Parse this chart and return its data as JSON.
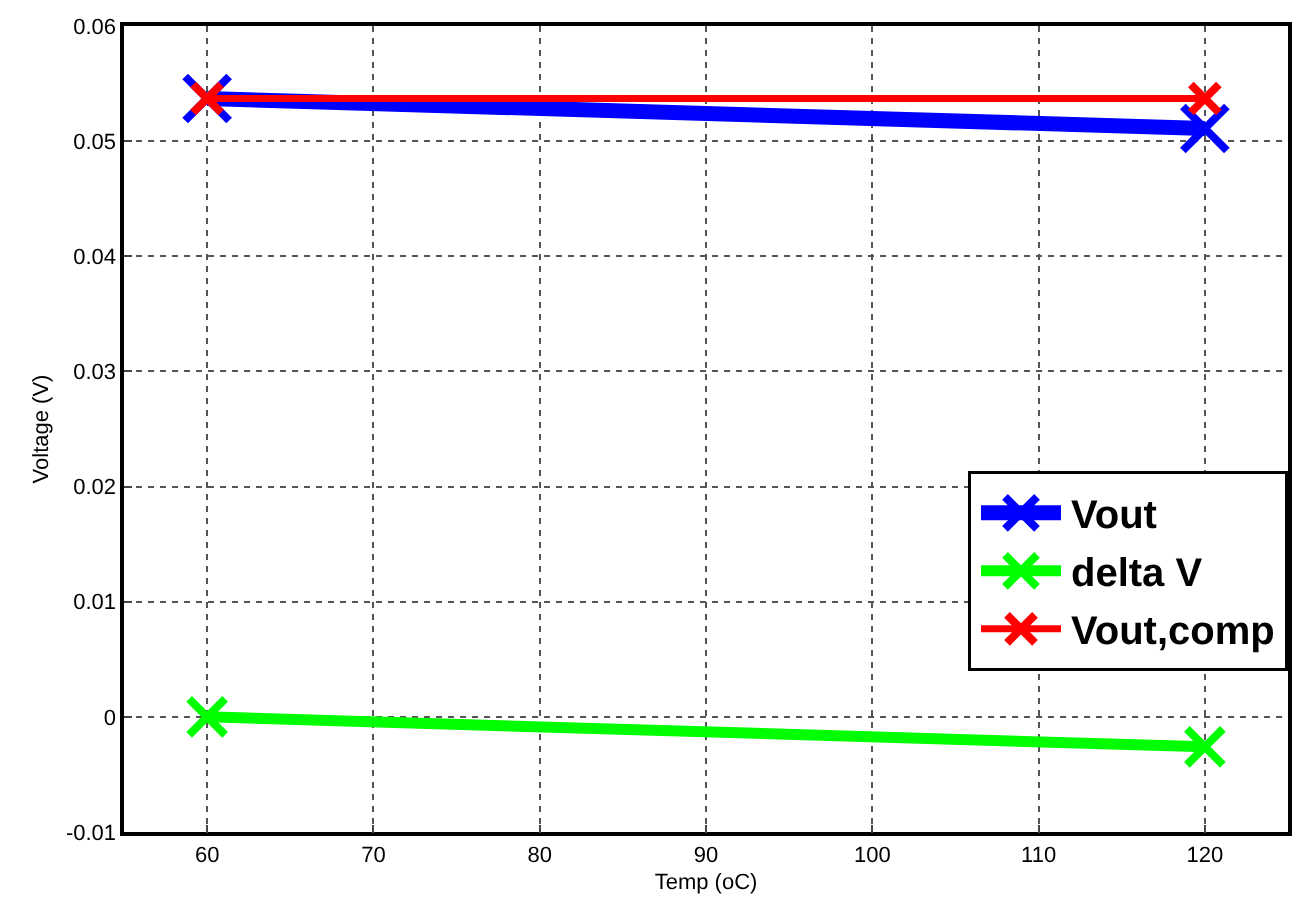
{
  "chart_data": {
    "type": "line",
    "xlabel": "Temp (oC)",
    "ylabel": "Voltage (V)",
    "x": [
      60,
      120
    ],
    "series": [
      {
        "name": "Vout",
        "color": "#0000ff",
        "values": [
          0.0537,
          0.0511
        ]
      },
      {
        "name": "delta V",
        "color": "#00ff00",
        "values": [
          0.0,
          -0.0026
        ]
      },
      {
        "name": "Vout,comp",
        "color": "#ff0000",
        "values": [
          0.0537,
          0.0537
        ]
      }
    ],
    "xlim": [
      55,
      125
    ],
    "xticks": [
      60,
      70,
      80,
      90,
      100,
      110,
      120
    ],
    "ylim": [
      -0.01,
      0.06
    ],
    "yticks": [
      -0.01,
      0,
      0.01,
      0.02,
      0.03,
      0.04,
      0.05,
      0.06
    ],
    "grid": true,
    "legend": "bottom right",
    "marker": "cross",
    "line_style": "solid"
  }
}
